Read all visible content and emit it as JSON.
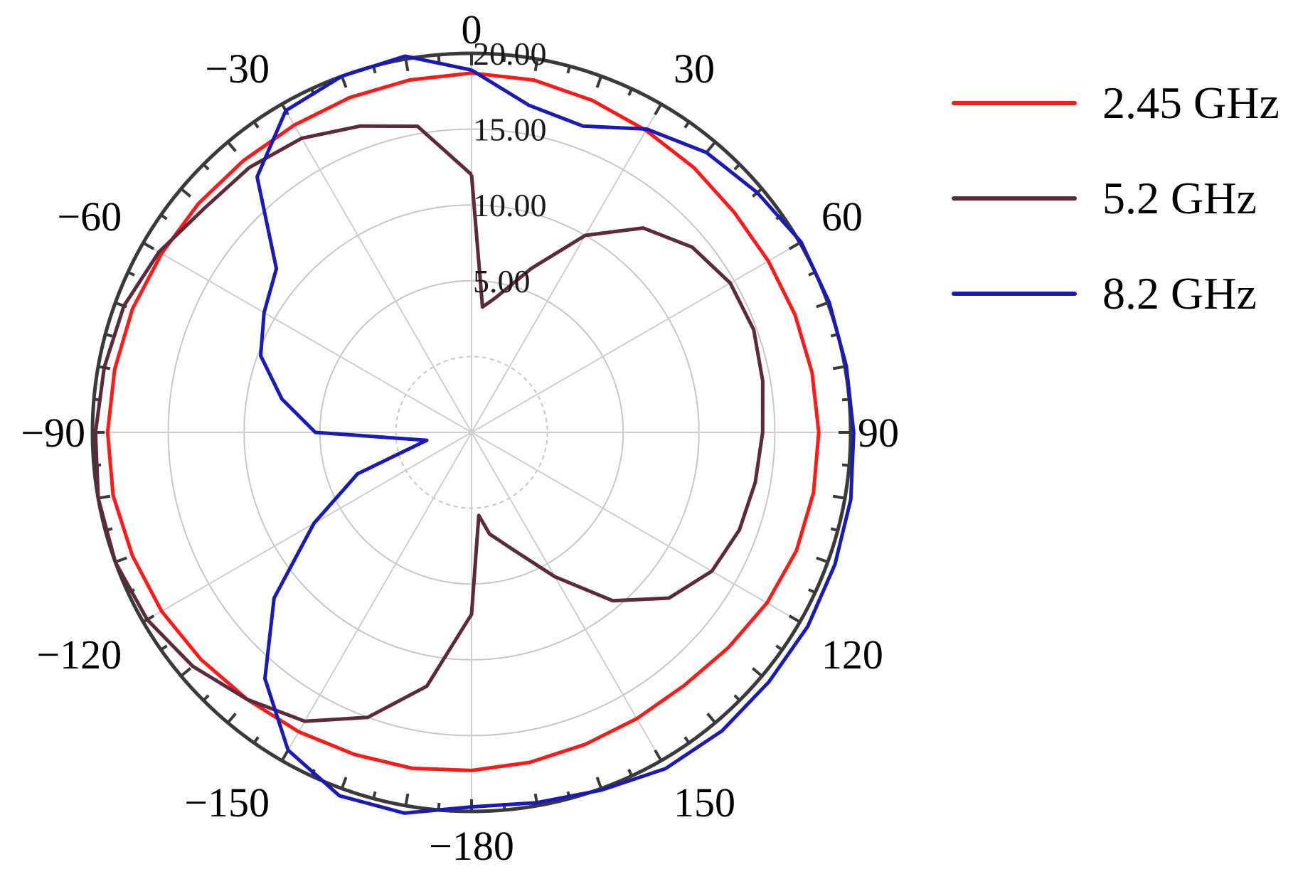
{
  "chart_data": {
    "type": "polar-line",
    "title": "",
    "angle_ticks": [
      0,
      30,
      60,
      90,
      120,
      150,
      -180,
      -150,
      -120,
      -90,
      -60,
      -30
    ],
    "angle_tick_labels": [
      "0",
      "30",
      "60",
      "90",
      "120",
      "150",
      "−180",
      "−150",
      "−120",
      "−90",
      "−60",
      "−30"
    ],
    "radial_ticks": [
      5,
      10,
      15,
      20
    ],
    "radial_tick_labels": [
      "5.00",
      "10.00",
      "15.00",
      "20.00"
    ],
    "rlim": [
      -5,
      20
    ],
    "grid": true,
    "legend_position": "top-right",
    "series": [
      {
        "name": "2.45 GHz",
        "color": "#ff1a1a",
        "angles": [
          0,
          10,
          20,
          30,
          40,
          50,
          60,
          70,
          80,
          90,
          100,
          110,
          120,
          130,
          140,
          150,
          160,
          170,
          180,
          190,
          200,
          210,
          220,
          230,
          240,
          250,
          260,
          270,
          280,
          290,
          300,
          310,
          320,
          330,
          340,
          350
        ],
        "values": [
          18.7,
          18.6,
          18.3,
          18.0,
          17.8,
          17.6,
          17.6,
          17.7,
          17.8,
          17.9,
          17.9,
          17.8,
          17.5,
          17.1,
          16.8,
          16.8,
          16.9,
          17.1,
          17.3,
          17.5,
          17.6,
          17.8,
          18.0,
          18.3,
          18.6,
          18.8,
          19.0,
          19.0,
          18.9,
          18.8,
          18.6,
          18.5,
          18.4,
          18.4,
          18.5,
          18.6
        ]
      },
      {
        "name": "5.2 GHz",
        "color": "#5c2a3a",
        "angles": [
          0,
          5,
          10,
          20,
          30,
          40,
          50,
          60,
          70,
          80,
          90,
          100,
          110,
          120,
          130,
          140,
          150,
          160,
          170,
          175,
          180,
          190,
          200,
          210,
          220,
          230,
          240,
          250,
          260,
          270,
          280,
          290,
          300,
          310,
          320,
          330,
          340,
          350
        ],
        "values": [
          12.0,
          3.3,
          4.0,
          6.5,
          10.0,
          12.6,
          14.0,
          14.7,
          14.8,
          14.5,
          14.2,
          14.0,
          13.8,
          13.3,
          12.0,
          9.5,
          6.0,
          3.3,
          1.8,
          0.5,
          7.0,
          12.0,
          15.0,
          17.0,
          18.0,
          19.0,
          19.7,
          20.0,
          20.0,
          19.8,
          19.6,
          19.4,
          18.8,
          18.0,
          17.8,
          17.4,
          16.5,
          15.5
        ]
      },
      {
        "name": "8.2 GHz",
        "color": "#1a1ab8",
        "angles": [
          0,
          10,
          20,
          30,
          40,
          50,
          60,
          70,
          80,
          90,
          100,
          110,
          120,
          130,
          140,
          150,
          160,
          170,
          180,
          190,
          200,
          210,
          220,
          230,
          240,
          250,
          260,
          270,
          280,
          290,
          300,
          310,
          320,
          330,
          340,
          350
        ],
        "values": [
          18.9,
          16.9,
          16.5,
          18.1,
          19.1,
          19.6,
          20.1,
          20.1,
          20.1,
          20.2,
          20.4,
          20.5,
          20.6,
          20.6,
          20.7,
          20.6,
          20.1,
          19.8,
          19.7,
          20.5,
          20.5,
          19.2,
          16.2,
          12.0,
          7.0,
          3.0,
          -2.0,
          5.3,
          7.7,
          9.8,
          10.8,
          11.8,
          17.0,
          19.5,
          20.0,
          20.2
        ]
      }
    ]
  }
}
